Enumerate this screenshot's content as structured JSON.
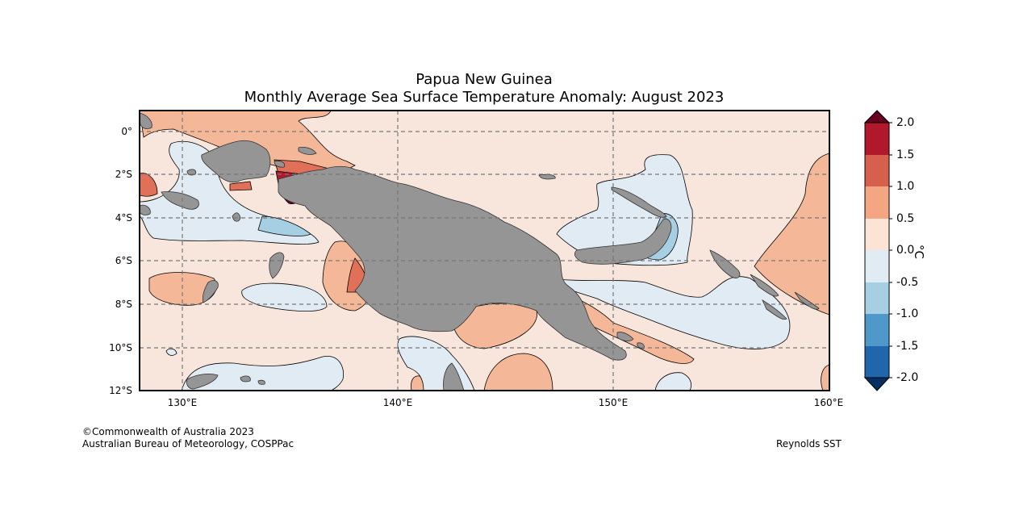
{
  "title": {
    "line1": "Papua New Guinea",
    "line2": "Monthly Average Sea Surface Temperature Anomaly: August 2023"
  },
  "map": {
    "lat_ticks": [
      "0°",
      "2°S",
      "4°S",
      "6°S",
      "8°S",
      "10°S",
      "12°S"
    ],
    "lon_ticks": [
      "130°E",
      "140°E",
      "150°E",
      "160°E"
    ],
    "extent": {
      "lon_min": 128,
      "lon_max": 160,
      "lat_min": -12,
      "lat_max": 1
    }
  },
  "colorbar": {
    "unit": "°C",
    "ticks": [
      "2.0",
      "1.5",
      "1.0",
      "0.5",
      "0.0",
      "-0.5",
      "-1.0",
      "-1.5",
      "-2.0"
    ],
    "colors": [
      "#67001f",
      "#b2182b",
      "#d6604d",
      "#f4a582",
      "#fbe3d6",
      "#e1ebf3",
      "#a7cfe4",
      "#4f98c9",
      "#2166ac",
      "#053061"
    ]
  },
  "credits": {
    "left_line1": "©Commonwealth of Australia 2023",
    "left_line2": "Australian Bureau of Meteorology, COSPPac",
    "right": "Reynolds SST"
  },
  "colors": {
    "land": "#959595",
    "ocean_base": "#f8e6dc",
    "warm": "#f4b899",
    "cool": "#e1ebf3",
    "cooler": "#a7cfe4"
  }
}
